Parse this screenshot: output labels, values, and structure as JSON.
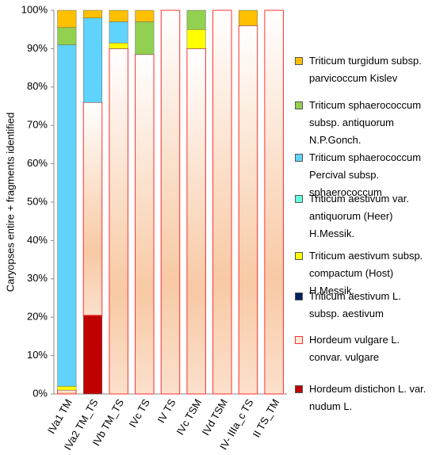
{
  "chart_data": {
    "type": "stacked_bar",
    "y_label": "Caryopses entire + fragments identified",
    "categories": [
      "IVa1 TM",
      "IVa2 TM_TS",
      "IVb TM_TS",
      "IVc TS",
      "IV TS",
      "IVc TSM",
      "IVd TSM",
      "IV- IIIa_c TS",
      "II TS_TM"
    ],
    "series": [
      {
        "name": "Hordeum distichon L. var. nudum L.",
        "color": "#c00000",
        "values": [
          0,
          20.5,
          0,
          0,
          0,
          0,
          0,
          0,
          0
        ]
      },
      {
        "name": "Hordeum vulgare L. convar. vulgare",
        "color": "#f8c9a4",
        "values": [
          1,
          55.5,
          90,
          88.5,
          100,
          90,
          100,
          96,
          100
        ]
      },
      {
        "name": "Triticum aestivum L. subsp. aestivum",
        "color": "#002060",
        "values": [
          0,
          0,
          0,
          0,
          0,
          0,
          0,
          0,
          0
        ]
      },
      {
        "name": "Triticum aestivum subsp. compactum (Host) H.Messik.",
        "color": "#ffff00",
        "values": [
          1,
          0,
          1.5,
          0,
          0,
          5,
          0,
          0,
          0
        ]
      },
      {
        "name": "Triticum aestivum var. antiquorum (Heer) H.Messik.",
        "color": "#66ffe0",
        "values": [
          0,
          0,
          0,
          0,
          0,
          0,
          0,
          0,
          0
        ]
      },
      {
        "name": "Triticum sphaerococcum Percival subsp. sphaerococcum",
        "color": "#5fd3fb",
        "values": [
          89,
          22,
          5.5,
          0,
          0,
          0,
          0,
          0,
          0
        ]
      },
      {
        "name": "Triticum sphaerococcum subsp. antiquorum N.P.Gonch.",
        "color": "#92d050",
        "values": [
          4.5,
          0,
          0,
          8.5,
          0,
          5,
          0,
          0,
          0
        ]
      },
      {
        "name": "Triticum turgidum subsp. parvicoccum Kislev",
        "color": "#ffc000",
        "values": [
          4.5,
          2,
          3,
          3,
          0,
          0,
          0,
          4,
          0
        ]
      }
    ],
    "ylim": [
      0,
      100
    ],
    "yticks": [
      {
        "value": 0,
        "label": "0%"
      },
      {
        "value": 10,
        "label": "10%"
      },
      {
        "value": 20,
        "label": "20%"
      },
      {
        "value": 30,
        "label": "30%"
      },
      {
        "value": 40,
        "label": "40%"
      },
      {
        "value": 50,
        "label": "50%"
      },
      {
        "value": 60,
        "label": "60%"
      },
      {
        "value": 70,
        "label": "70%"
      },
      {
        "value": 80,
        "label": "80%"
      },
      {
        "value": 90,
        "label": "90%"
      },
      {
        "value": 100,
        "label": "100%"
      }
    ],
    "legend": "right"
  }
}
